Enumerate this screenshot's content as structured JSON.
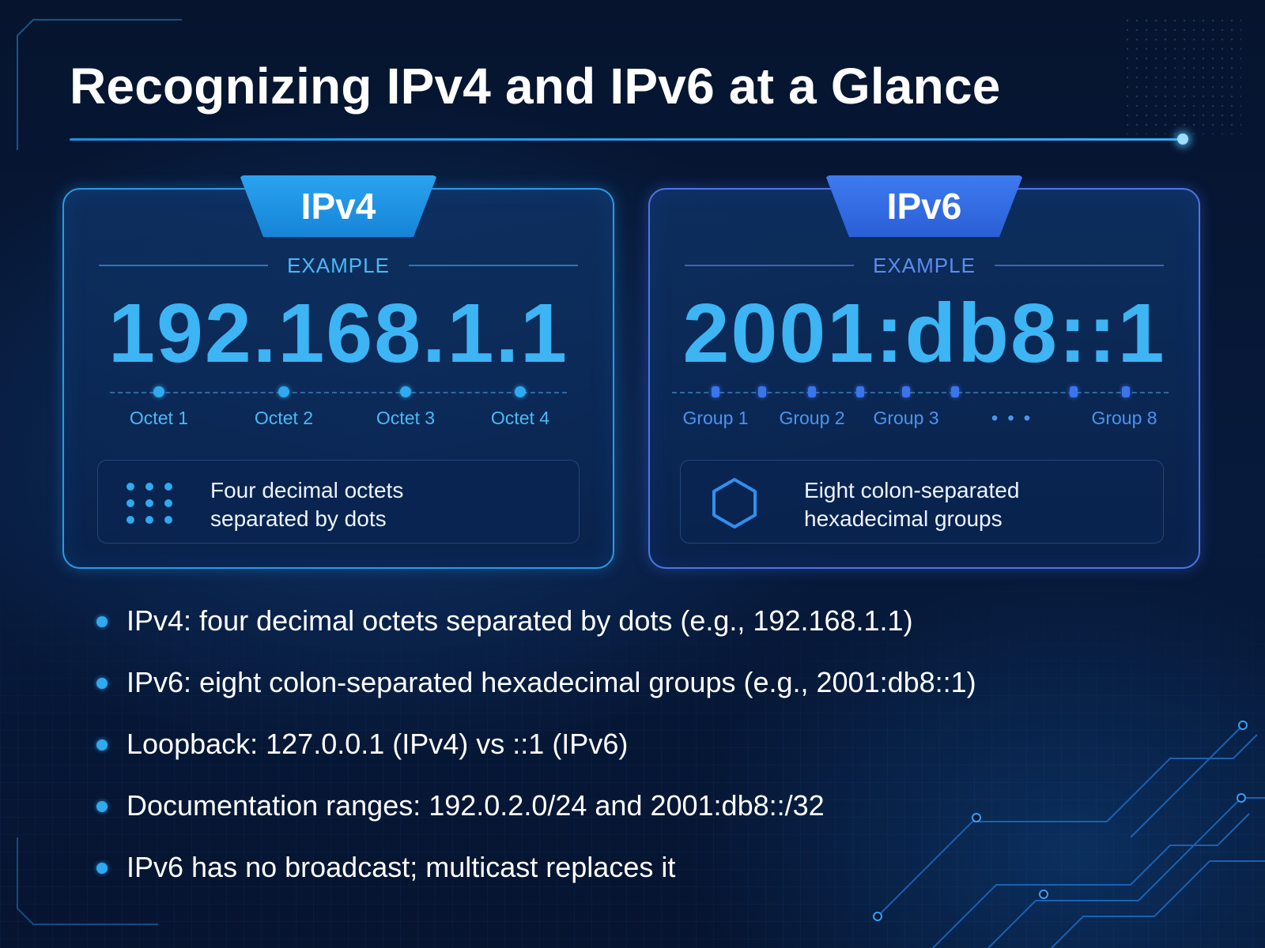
{
  "title": "Recognizing IPv4 and IPv6 at a Glance",
  "accent_colors": {
    "ipv4": "#2fa9f0",
    "ipv6": "#3a75ee",
    "background": "#071a3c"
  },
  "ipv4": {
    "tab": "IPv4",
    "example_label": "EXAMPLE",
    "address": "192.168.1.1",
    "segments": [
      "Octet 1",
      "Octet 2",
      "Octet 3",
      "Octet 4"
    ],
    "description_line1": "Four decimal octets",
    "description_line2": "separated by dots",
    "icon": "dot-grid-icon"
  },
  "ipv6": {
    "tab": "IPv6",
    "example_label": "EXAMPLE",
    "address": "2001:db8::1",
    "segments": [
      "Group 1",
      "Group 2",
      "Group 3",
      "• • •",
      "Group 8"
    ],
    "description_line1": "Eight colon-separated",
    "description_line2": "hexadecimal groups",
    "icon": "hexagon-icon"
  },
  "bullets": [
    "IPv4: four decimal octets separated by dots (e.g., 192.168.1.1)",
    "IPv6: eight colon-separated hexadecimal groups (e.g., 2001:db8::1)",
    "Loopback: 127.0.0.1 (IPv4) vs ::1 (IPv6)",
    "Documentation ranges: 192.0.2.0/24 and 2001:db8::/32",
    "IPv6 has no broadcast; multicast replaces it"
  ]
}
